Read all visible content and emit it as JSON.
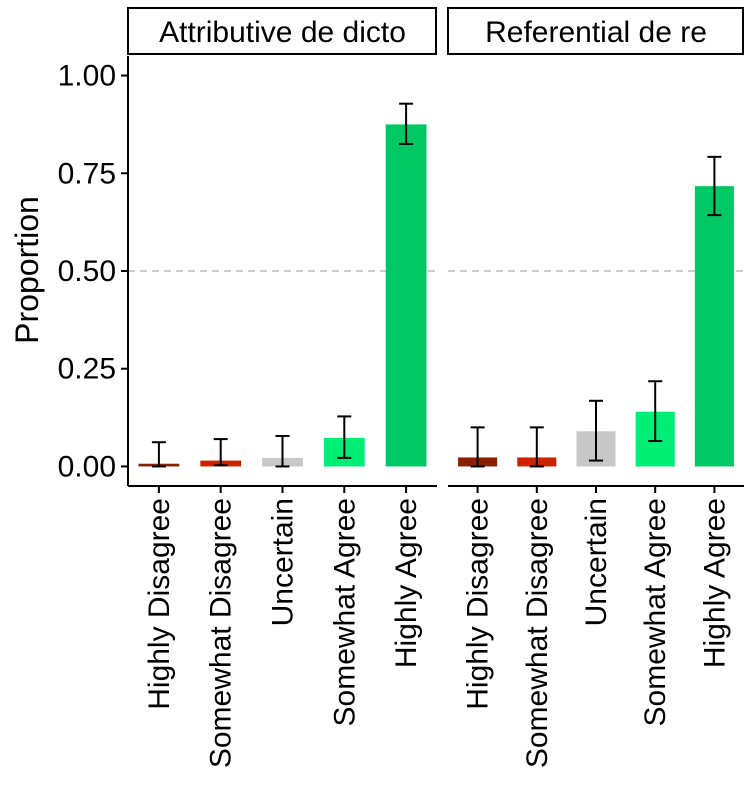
{
  "chart_data": {
    "type": "bar",
    "ylabel": "Proportion",
    "xlabel": "",
    "ylim": [
      -0.05,
      1.05
    ],
    "yticks": [
      "0.00",
      "0.25",
      "0.50",
      "0.75",
      "1.00"
    ],
    "categories": [
      "Highly Disagree",
      "Somewhat Disagree",
      "Uncertain",
      "Somewhat Agree",
      "Highly Agree"
    ],
    "colors": [
      "#8B2000",
      "#CC2200",
      "#C8C8C8",
      "#00EE76",
      "#00C864"
    ],
    "reference_line": {
      "y": 0.5,
      "style": "dashed",
      "color": "#BBBBBB"
    },
    "panels": [
      {
        "title": "Attributive de dicto",
        "values": [
          0.007,
          0.015,
          0.022,
          0.073,
          0.875
        ],
        "error_low": [
          0.0,
          0.003,
          0.0,
          0.022,
          0.825
        ],
        "error_high": [
          0.062,
          0.07,
          0.078,
          0.128,
          0.928
        ]
      },
      {
        "title": "Referential de re",
        "values": [
          0.023,
          0.023,
          0.09,
          0.14,
          0.717
        ],
        "error_low": [
          0.0,
          0.0,
          0.015,
          0.065,
          0.643
        ],
        "error_high": [
          0.1,
          0.1,
          0.168,
          0.218,
          0.792
        ]
      }
    ]
  }
}
